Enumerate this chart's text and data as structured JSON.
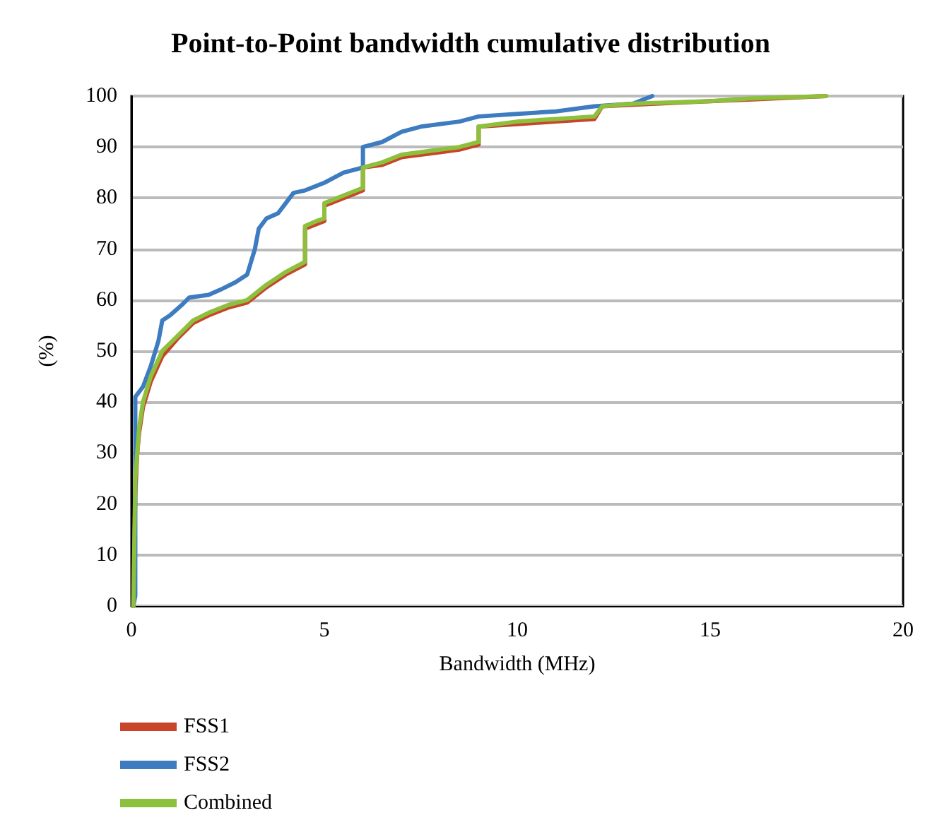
{
  "chart_data": {
    "type": "line",
    "title": "Point-to-Point bandwidth cumulative distribution",
    "xlabel": "Bandwidth (MHz)",
    "ylabel": "(%)",
    "xlim": [
      0,
      20
    ],
    "xticks": [
      0,
      5,
      10,
      15,
      20
    ],
    "ylim": [
      0,
      100
    ],
    "yticks": [
      0,
      10,
      20,
      30,
      40,
      50,
      60,
      70,
      80,
      90,
      100
    ],
    "grid": "y",
    "legend": "bottom left",
    "marker": "none",
    "line_style": "solid",
    "series": [
      {
        "name": "FSS1",
        "color": "#c8452c",
        "x": [
          0.05,
          0.1,
          0.15,
          0.2,
          0.3,
          0.5,
          0.8,
          1.2,
          1.6,
          2,
          2.5,
          3,
          3.5,
          4,
          4.5,
          4.5,
          5,
          5,
          5.5,
          6,
          6,
          6.5,
          7,
          8,
          8.5,
          9,
          9,
          10,
          11,
          12,
          12.2,
          13,
          15,
          16,
          18
        ],
        "values": [
          0,
          22,
          30,
          34,
          39,
          44,
          49,
          52.5,
          55.5,
          57,
          58.5,
          59.5,
          62.5,
          65,
          67,
          74,
          75.5,
          78.5,
          80,
          81.5,
          86,
          86.5,
          88,
          89,
          89.5,
          90.5,
          94,
          94.5,
          95,
          95.5,
          98,
          98.3,
          99,
          99.3,
          100
        ]
      },
      {
        "name": "FSS2",
        "color": "#3d7cc0",
        "x": [
          0.05,
          0.1,
          0.1,
          0.3,
          0.5,
          0.7,
          0.8,
          1,
          1.3,
          1.5,
          2,
          2.3,
          2.7,
          3,
          3.2,
          3.3,
          3.5,
          3.8,
          4,
          4.2,
          4.5,
          5,
          5.5,
          6,
          6,
          6.5,
          7,
          7.5,
          8.5,
          9,
          10,
          11,
          12,
          13,
          13.5
        ],
        "values": [
          0,
          2,
          41,
          43,
          47,
          52,
          56,
          57,
          59,
          60.5,
          61,
          62,
          63.5,
          65,
          70,
          74,
          76,
          77,
          79,
          81,
          81.5,
          83,
          85,
          86,
          90,
          91,
          93,
          94,
          95,
          96,
          96.5,
          97,
          98,
          98.5,
          100
        ]
      },
      {
        "name": "Combined",
        "color": "#8dc03c",
        "x": [
          0.05,
          0.1,
          0.15,
          0.2,
          0.3,
          0.5,
          0.8,
          1.2,
          1.6,
          2,
          2.5,
          3,
          3.5,
          4,
          4.5,
          4.5,
          4.8,
          5,
          5,
          5.5,
          6,
          6,
          6.5,
          7,
          8,
          8.5,
          9,
          9,
          10,
          11,
          12,
          12.2,
          13,
          15,
          16,
          18
        ],
        "values": [
          0,
          25,
          30,
          35,
          40,
          45,
          50,
          53,
          56,
          57.5,
          59,
          60,
          63,
          65.5,
          67.5,
          74.5,
          75.5,
          76,
          79,
          80.5,
          82,
          86,
          87,
          88.5,
          89.5,
          90,
          91,
          94,
          95,
          95.5,
          96,
          98,
          98.5,
          99,
          99.5,
          100
        ]
      }
    ]
  }
}
